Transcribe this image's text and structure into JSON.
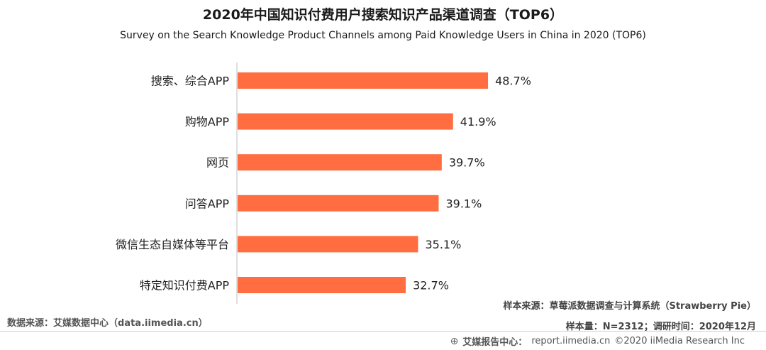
{
  "chart_data": {
    "type": "bar",
    "orientation": "horizontal",
    "title": "2020年中国知识付费用户搜索知识产品渠道调查（TOP6）",
    "subtitle": "Survey on the Search Knowledge Product Channels among   Paid Knowledge Users in China in 2020 (TOP6)",
    "categories": [
      "搜索、综合APP",
      "购物APP",
      "网页",
      "问答APP",
      "微信生态自媒体等平台",
      "特定知识付费APP"
    ],
    "values": [
      48.7,
      41.9,
      39.7,
      39.1,
      35.1,
      32.7
    ],
    "data_labels": [
      "48.7%",
      "41.9%",
      "39.7%",
      "39.1%",
      "35.1%",
      "32.7%"
    ],
    "unit": "%",
    "xlim": [
      0,
      60
    ],
    "bar_color": "#ff6d40",
    "grid": false,
    "legend": "none"
  },
  "source_left": "数据来源：艾媒数据中心（data.iimedia.cn）",
  "note_sample_source": "样本来源：草莓派数据调查与计算系统（Strawberry Pie）",
  "note_sample_size": "样本量：N=2312；调研时间：2020年12月",
  "footer": {
    "icon": "globe-icon",
    "org_label": "艾媒报告中心：",
    "url": "report.iimedia.cn",
    "copyright": "©2020  iiMedia Research  Inc"
  }
}
